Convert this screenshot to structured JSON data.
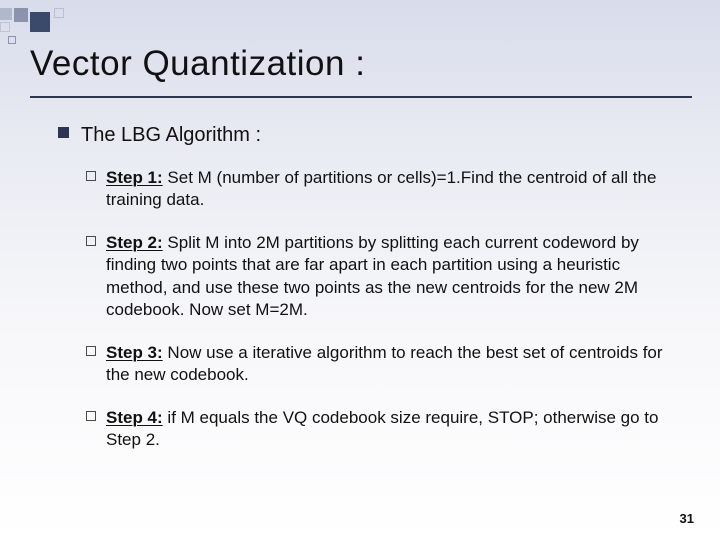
{
  "decor": {
    "accent_color": "#3b4a6b",
    "outline_color": "#8a93b0"
  },
  "title": "Vector Quantization :",
  "rule_color": "#2c3552",
  "section": {
    "label": "The LBG Algorithm :",
    "bullet_color": "#2c3552",
    "sub_bullet_border": "#4a4a4a",
    "steps": [
      {
        "label": "Step 1:",
        "text": " Set M (number of partitions or cells)=1.Find the centroid of all the training data."
      },
      {
        "label": "Step 2:",
        "text": " Split M into 2M partitions by splitting each current codeword by finding two points that are far apart in each partition using a heuristic method, and use these two points as the new centroids for the new 2M codebook. Now set M=2M."
      },
      {
        "label": "Step 3:",
        "text": " Now use a iterative algorithm to reach the best set of centroids for the new codebook."
      },
      {
        "label": "Step 4:",
        "text": " if M equals the VQ codebook size require, STOP; otherwise go to Step 2."
      }
    ]
  },
  "page_number": "31",
  "typography": {
    "title_fontsize": 35,
    "section_fontsize": 20,
    "step_fontsize": 17,
    "page_num_fontsize": 13
  },
  "background_gradient": [
    "#d8dceb",
    "#e8eaf2",
    "#f7f7fa",
    "#ffffff"
  ]
}
